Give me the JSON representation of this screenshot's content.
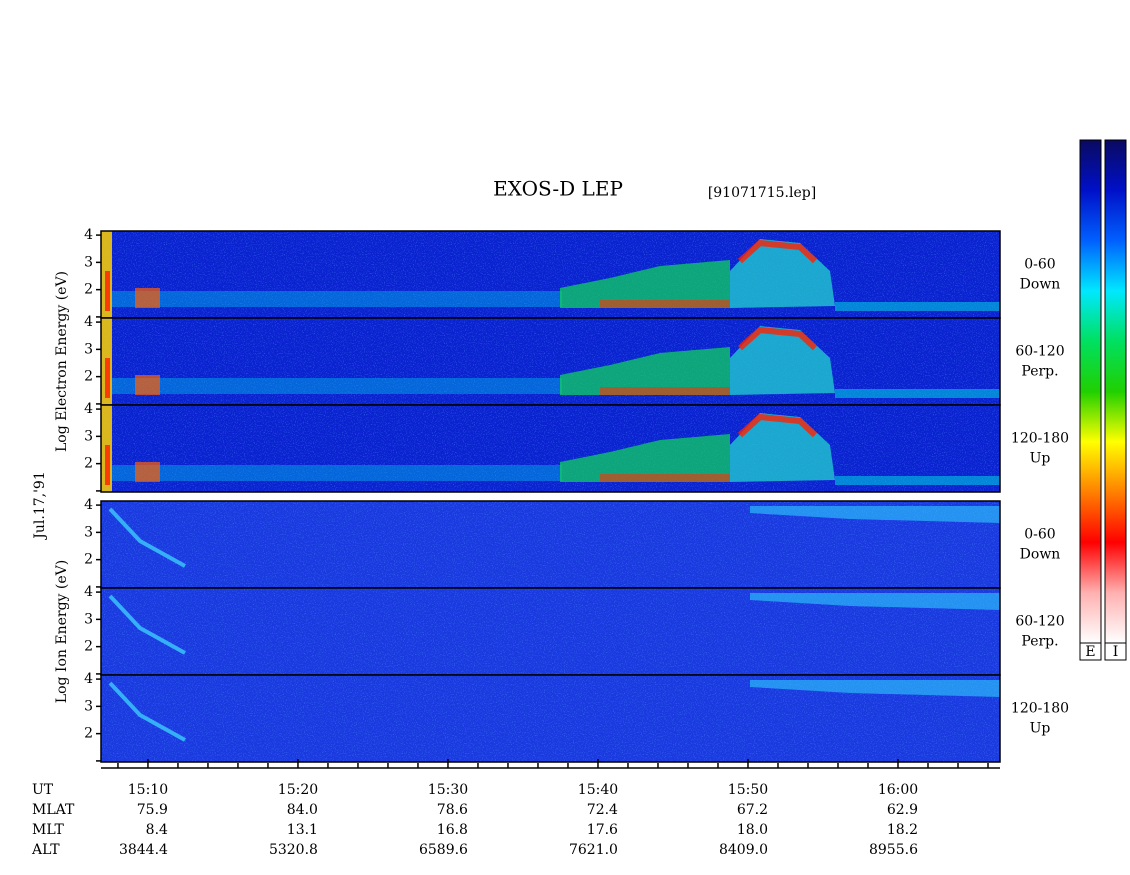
{
  "chart_data": {
    "type": "spectrogram",
    "title": "EXOS-D LEP",
    "file_label": "[91071715.lep]",
    "date_label": "Jul.17,'91",
    "time_label": "UT",
    "xlim": [
      6.87,
      66.8
    ],
    "xticks": [
      {
        "value": 10,
        "label": "15:10"
      },
      {
        "value": 20,
        "label": "15:20"
      },
      {
        "value": 30,
        "label": "15:30"
      },
      {
        "value": 40,
        "label": "15:40"
      },
      {
        "value": 50,
        "label": "15:50"
      },
      {
        "value": 60,
        "label": "16:00"
      }
    ],
    "xminorticks": [
      8,
      12,
      14,
      16,
      18,
      22,
      24,
      26,
      28,
      32,
      34,
      36,
      38,
      42,
      44,
      46,
      48,
      52,
      54,
      56,
      58,
      62,
      64,
      66
    ],
    "ylim": [
      0.96,
      4.15
    ],
    "yticks": [
      {
        "value": 1,
        "label": null
      },
      2,
      3,
      4
    ],
    "panel_groups": [
      {
        "ylabel": "Log  Electron  Energy (eV)",
        "species": "electron",
        "panels": [
          {
            "label_lines": [
              "0-60",
              "Down"
            ]
          },
          {
            "label_lines": [
              "60-120",
              "Perp."
            ]
          },
          {
            "label_lines": [
              "120-180",
              "Up"
            ]
          }
        ]
      },
      {
        "ylabel": "Log  Ion  Energy (eV)",
        "species": "ion",
        "panels": [
          {
            "label_lines": [
              "0-60",
              "Down"
            ]
          },
          {
            "label_lines": [
              "60-120",
              "Perp."
            ]
          },
          {
            "label_lines": [
              "120-180",
              "Up"
            ]
          }
        ]
      }
    ],
    "ephemeris": [
      {
        "name": "MLAT",
        "values": [
          "75.9",
          "84.0",
          "78.6",
          "72.4",
          "67.2",
          "62.9"
        ]
      },
      {
        "name": "MLT",
        "values": [
          "8.4",
          "13.1",
          "16.8",
          "17.6",
          "18.0",
          "18.2"
        ]
      },
      {
        "name": "ALT",
        "values": [
          "3844.4",
          "5320.8",
          "6589.6",
          "7621.0",
          "8409.0",
          "8955.6"
        ]
      }
    ],
    "colorbars": [
      {
        "label": "E"
      },
      {
        "label": "I"
      }
    ],
    "colormap": [
      "#0a0a60",
      "#0010c8",
      "#0060ff",
      "#00e8ff",
      "#00e060",
      "#20d000",
      "#ffff00",
      "#ff8000",
      "#ff0000",
      "#ffb0b0",
      "#ffffff"
    ]
  }
}
